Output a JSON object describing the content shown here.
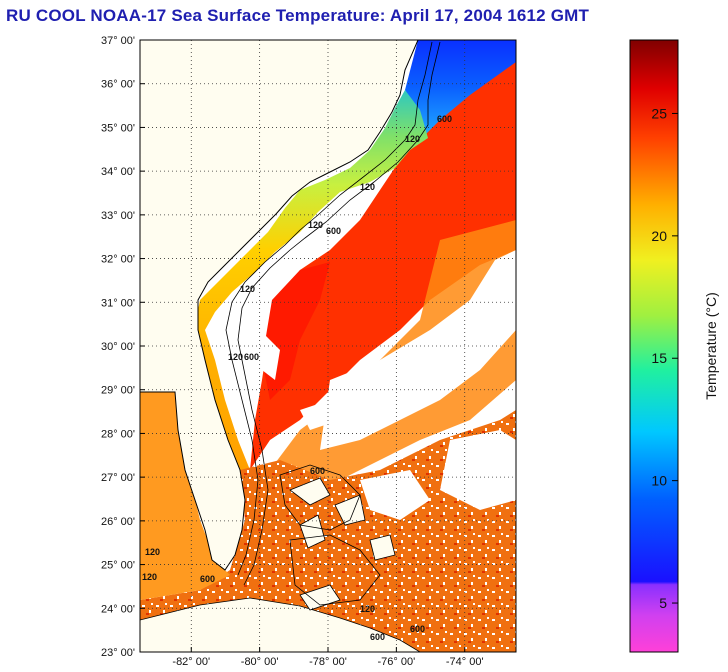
{
  "title": "RU COOL  NOAA-17  Sea Surface Temperature:  April 17, 2004 1612 GMT",
  "map": {
    "lat_labels": [
      "37° 00'",
      "36° 00'",
      "35° 00'",
      "34° 00'",
      "33° 00'",
      "32° 00'",
      "31° 00'",
      "30° 00'",
      "29° 00'",
      "28° 00'",
      "27° 00'",
      "26° 00'",
      "25° 00'",
      "24° 00'",
      "23° 00'"
    ],
    "lon_labels": [
      "-82° 00'",
      "-80° 00'",
      "-78° 00'",
      "-76° 00'",
      "-74° 00'"
    ],
    "lat_range": [
      23,
      37
    ],
    "lon_range": [
      -83.5,
      -72.5
    ],
    "contour_labels": [
      "120",
      "600"
    ],
    "grid": "dotted"
  },
  "colorbar": {
    "label": "Temperature (°C)",
    "ticks": [
      "5",
      "10",
      "15",
      "20",
      "25"
    ],
    "tick_values": [
      5,
      10,
      15,
      20,
      25
    ],
    "range": [
      3,
      28
    ]
  },
  "colors": {
    "title": "#1f1fb0",
    "land": "#fffdf0",
    "cloud": "#ffffff",
    "gulf_stream": "#ff2a00",
    "shelf_warm": "#ffb000",
    "shelf_cool": "#7ee06a",
    "cold_north": "#1040ff"
  }
}
